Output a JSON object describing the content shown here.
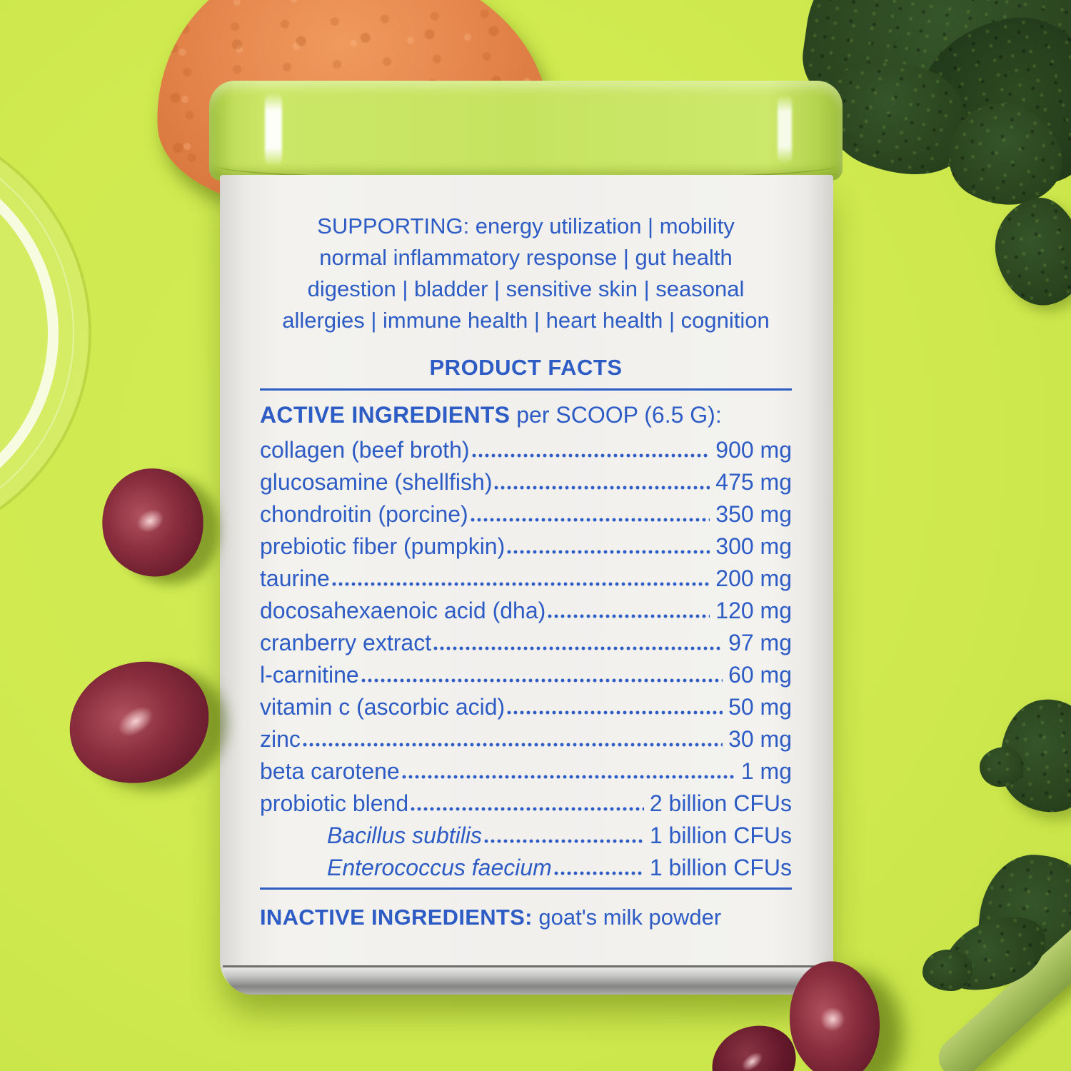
{
  "product_label": {
    "supporting_lines": [
      "SUPPORTING: energy utilization | mobility",
      "normal inflammatory response | gut health",
      "digestion | bladder | sensitive skin | seasonal",
      "allergies | immune health | heart health | cognition"
    ],
    "product_facts_title": "PRODUCT FACTS",
    "active_header_bold": "ACTIVE INGREDIENTS",
    "active_header_rest": " per SCOOP (6.5 G):",
    "ingredients": [
      {
        "name": "collagen (beef broth)",
        "amount": "900 mg",
        "italic": false,
        "indent": false
      },
      {
        "name": "glucosamine (shellfish)",
        "amount": "475 mg",
        "italic": false,
        "indent": false
      },
      {
        "name": "chondroitin (porcine)",
        "amount": "350 mg",
        "italic": false,
        "indent": false
      },
      {
        "name": "prebiotic fiber (pumpkin)",
        "amount": "300 mg",
        "italic": false,
        "indent": false
      },
      {
        "name": "taurine",
        "amount": "200 mg",
        "italic": false,
        "indent": false
      },
      {
        "name": "docosahexaenoic acid (dha)",
        "amount": "120 mg",
        "italic": false,
        "indent": false
      },
      {
        "name": "cranberry extract",
        "amount": "97 mg",
        "italic": false,
        "indent": false
      },
      {
        "name": "l-carnitine",
        "amount": "60 mg",
        "italic": false,
        "indent": false
      },
      {
        "name": "vitamin c (ascorbic acid)",
        "amount": "50 mg",
        "italic": false,
        "indent": false
      },
      {
        "name": "zinc",
        "amount": "30 mg",
        "italic": false,
        "indent": false
      },
      {
        "name": "beta carotene",
        "amount": "1 mg",
        "italic": false,
        "indent": false
      },
      {
        "name": "probiotic blend",
        "amount": "2 billion CFUs",
        "italic": false,
        "indent": false
      },
      {
        "name": "Bacillus subtilis",
        "amount": "1 billion CFUs",
        "italic": true,
        "indent": true
      },
      {
        "name": "Enterococcus faecium",
        "amount": "1 billion CFUs",
        "italic": true,
        "indent": true
      }
    ],
    "inactive_bold": "INACTIVE INGREDIENTS:",
    "inactive_rest": " goat's milk powder"
  },
  "scene": {
    "items": [
      "supplement tin",
      "sweet potato slice",
      "glass dish",
      "kale leaves",
      "kale stem",
      "cranberries"
    ],
    "colors": {
      "background_lime": "#cfe94f",
      "lid_green": "#c6e360",
      "tin_white": "#f1f0ed",
      "label_blue": "#2e5cc5",
      "kale_green": "#2a451f",
      "cranberry_red": "#7d2737",
      "sweet_potato_orange": "#e3814a",
      "metal_gray": "#858583"
    }
  }
}
